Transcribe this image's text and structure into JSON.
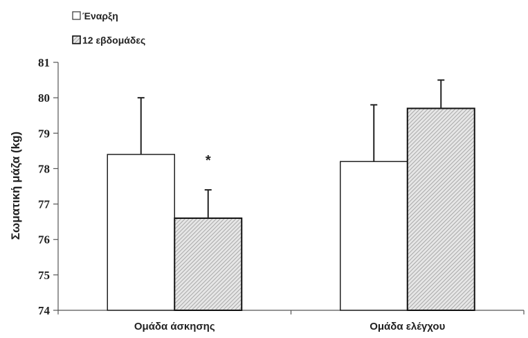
{
  "chart_data": {
    "type": "bar",
    "title": "",
    "xlabel": "",
    "ylabel": "Σωματική μάζα (kg)",
    "ylim": [
      74,
      81
    ],
    "yticks": [
      74,
      75,
      76,
      77,
      78,
      79,
      80,
      81
    ],
    "categories": [
      "Ομάδα άσκησης",
      "Ομάδα ελέγχου"
    ],
    "series": [
      {
        "name": "Έναρξη",
        "values": [
          78.4,
          78.2
        ],
        "error": [
          1.6,
          1.6
        ],
        "fill": "white"
      },
      {
        "name": "12 εβδομάδες",
        "values": [
          76.6,
          79.7
        ],
        "error": [
          0.8,
          0.8
        ],
        "fill": "hatched"
      }
    ],
    "annotations": [
      {
        "text": "*",
        "category": "Ομάδα άσκησης",
        "series": "12 εβδομάδες"
      }
    ],
    "grid": false,
    "legend_position": "top-left",
    "colors": {
      "bar_stroke": "#111111",
      "hatch_bg": "#e6e6e6",
      "hatch_line": "#9a9a9a",
      "axis": "#555555"
    }
  }
}
